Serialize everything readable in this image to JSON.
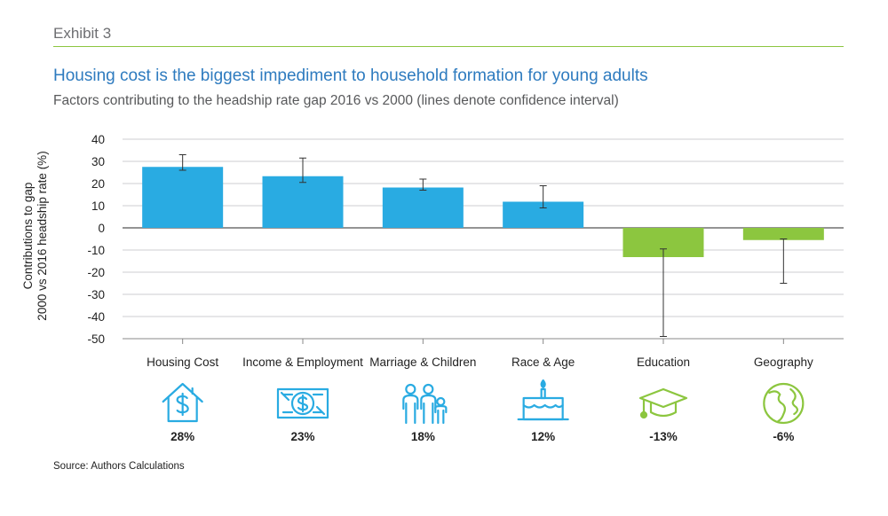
{
  "header": {
    "exhibit": "Exhibit 3",
    "title": "Housing cost is the biggest impediment to household formation for young adults",
    "subtitle": "Factors contributing to the headship rate gap 2016 vs 2000 (lines denote confidence interval)"
  },
  "footer": {
    "source": "Source: Authors Calculations"
  },
  "colors": {
    "blue": "#29abe2",
    "green": "#8cc63f",
    "title": "#2e7bbf",
    "grid": "#bcbec0"
  },
  "chart_data": {
    "type": "bar",
    "title": "Housing cost is the biggest impediment to household formation for young adults",
    "ylabel_line1": "Contributions to gap",
    "ylabel_line2": "2000 vs 2016 headship rate (%)",
    "xlabel": "",
    "ylim": [
      -50,
      40
    ],
    "yticks": [
      40,
      30,
      20,
      10,
      0,
      -10,
      -20,
      -30,
      -40,
      -50
    ],
    "categories": [
      "Housing Cost",
      "Income & Employment",
      "Marriage & Children",
      "Race & Age",
      "Education",
      "Geography"
    ],
    "values": [
      27.5,
      23.3,
      18.2,
      11.8,
      -13.2,
      -5.5
    ],
    "ci_low": [
      26,
      20.5,
      17,
      9,
      -49,
      -25
    ],
    "ci_high": [
      33,
      31.5,
      22,
      19,
      -9.5,
      -5
    ],
    "value_labels": [
      "28%",
      "23%",
      "18%",
      "12%",
      "-13%",
      "-6%"
    ],
    "icons": [
      "house-dollar-icon",
      "money-bill-icon",
      "family-icon",
      "birthday-cake-icon",
      "graduation-cap-icon",
      "globe-icon"
    ],
    "grid": true
  }
}
